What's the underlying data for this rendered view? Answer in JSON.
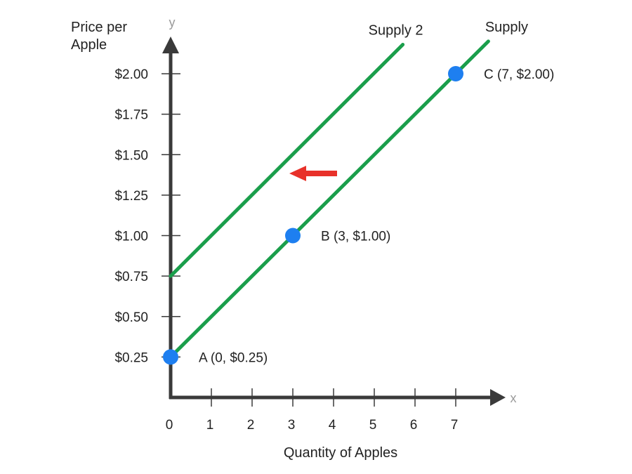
{
  "chart_data": {
    "type": "line",
    "title": "",
    "xlabel": "Quantity of Apples",
    "ylabel_lines": [
      "Price per",
      "Apple"
    ],
    "x_axis_letter": "x",
    "y_axis_letter": "y",
    "x_ticks": [
      0,
      1,
      2,
      3,
      4,
      5,
      6,
      7
    ],
    "x_tick_labels": [
      "0",
      "1",
      "2",
      "3",
      "4",
      "5",
      "6",
      "7"
    ],
    "y_ticks": [
      0.25,
      0.5,
      0.75,
      1.0,
      1.25,
      1.5,
      1.75,
      2.0
    ],
    "y_tick_labels": [
      "$0.25",
      "$0.50",
      "$0.75",
      "$1.00",
      "$1.25",
      "$1.50",
      "$1.75",
      "$2.00"
    ],
    "grid": false,
    "series": [
      {
        "name": "Supply",
        "color": "#1a9e4b",
        "x": [
          0,
          7.8
        ],
        "y": [
          0.25,
          2.2
        ]
      },
      {
        "name": "Supply 2",
        "color": "#1a9e4b",
        "x": [
          0,
          5.7
        ],
        "y": [
          0.75,
          2.18
        ]
      }
    ],
    "points": [
      {
        "label": "A (0, $0.25)",
        "x": 0,
        "y": 0.25,
        "color": "#1e7ff0"
      },
      {
        "label": "B (3, $1.00)",
        "x": 3,
        "y": 1.0,
        "color": "#1e7ff0"
      },
      {
        "label": "C (7, $2.00)",
        "x": 7,
        "y": 2.0,
        "color": "#1e7ff0"
      }
    ],
    "shift_arrow": {
      "direction": "left",
      "color": "#e8312a"
    }
  }
}
